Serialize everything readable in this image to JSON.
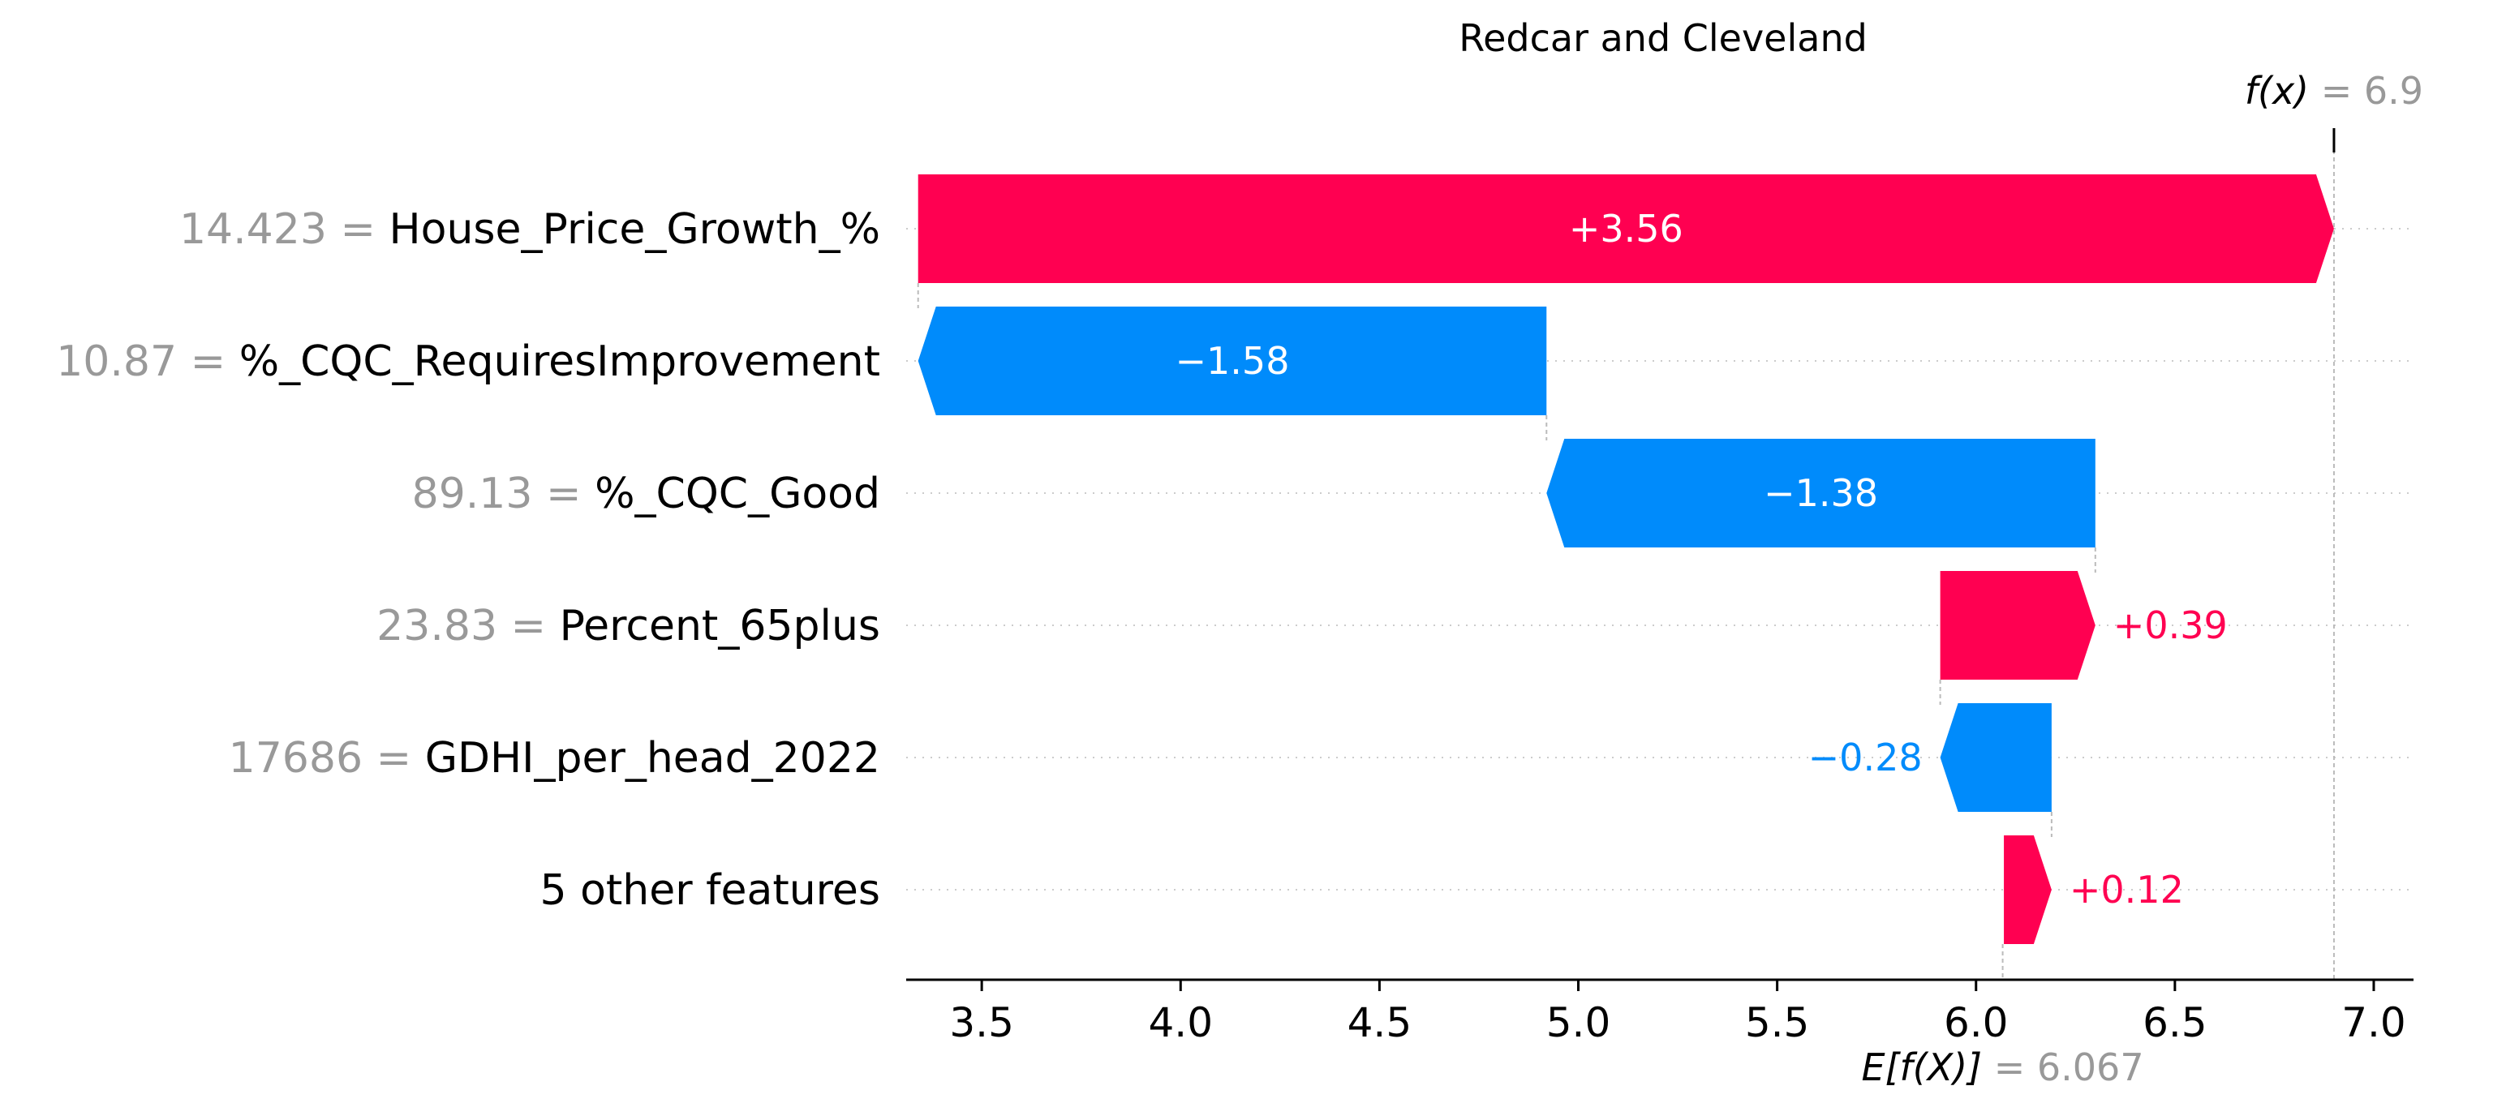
{
  "chart_data": {
    "type": "bar",
    "subtype": "shap-waterfall",
    "title": "Redcar and Cleveland",
    "rows": [
      {
        "feature_value": "14.423",
        "feature": "House_Price_Growth_%",
        "contribution": 3.56,
        "label": "+3.56"
      },
      {
        "feature_value": "10.87",
        "feature": "%_CQC_RequiresImprovement",
        "contribution": -1.58,
        "label": "−1.58"
      },
      {
        "feature_value": "89.13",
        "feature": "%_CQC_Good",
        "contribution": -1.38,
        "label": "−1.38"
      },
      {
        "feature_value": "23.83",
        "feature": "Percent_65plus",
        "contribution": 0.39,
        "label": "+0.39"
      },
      {
        "feature_value": "17686",
        "feature": "GDHI_per_head_2022",
        "contribution": -0.28,
        "label": "−0.28"
      },
      {
        "feature_value": "",
        "feature": "5 other features",
        "contribution": 0.12,
        "label": "+0.12"
      }
    ],
    "base_value": 6.067,
    "output_value": 6.9,
    "expected_label": {
      "symbol": "E[f(X)]",
      "eq": "= 6.067"
    },
    "output_label": {
      "symbol": "f(x)",
      "eq": "= 6.9"
    },
    "xticks": [
      "3.5",
      "4.0",
      "4.5",
      "5.0",
      "5.5",
      "6.0",
      "6.5",
      "7.0"
    ],
    "xlim": [
      3.31,
      7.1
    ],
    "colors": {
      "positive": "#ff0051",
      "negative": "#008bfb",
      "label_gray": "#999999"
    }
  }
}
